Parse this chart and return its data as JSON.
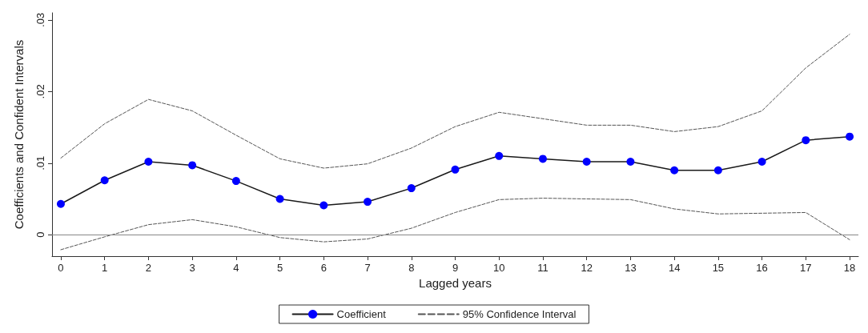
{
  "chart_data": {
    "type": "line",
    "xlabel": "Lagged years",
    "ylabel": "Coefficients and Confident Intervals",
    "x": [
      0,
      1,
      2,
      3,
      4,
      5,
      6,
      7,
      8,
      9,
      10,
      11,
      12,
      13,
      14,
      15,
      16,
      17,
      18
    ],
    "series": [
      {
        "name": "Coefficient",
        "color": "#0000ff",
        "marker": "circle",
        "line_style": "solid",
        "values": [
          0.0043,
          0.0076,
          0.0102,
          0.0097,
          0.0075,
          0.005,
          0.0041,
          0.0046,
          0.0065,
          0.0091,
          0.011,
          0.0106,
          0.0102,
          0.0102,
          0.009,
          0.009,
          0.0102,
          0.0132,
          0.0137
        ]
      },
      {
        "name": "95% Confidence Interval",
        "color": "#555555",
        "marker": "none",
        "line_style": "dashed",
        "values": [
          0.0107,
          0.0155,
          0.0189,
          0.0173,
          0.0139,
          0.0106,
          0.0093,
          0.0099,
          0.0121,
          0.0151,
          0.0171,
          0.0162,
          0.0153,
          0.0153,
          0.0144,
          0.0151,
          0.0173,
          0.0233,
          0.028
        ]
      },
      {
        "color": "#555555",
        "marker": "none",
        "line_style": "dashed",
        "values": [
          -0.0021,
          -0.0003,
          0.0014,
          0.0021,
          0.0011,
          -0.0004,
          -0.001,
          -0.0006,
          0.0009,
          0.0031,
          0.0049,
          0.0051,
          0.005,
          0.0049,
          0.0036,
          0.0029,
          0.003,
          0.0031,
          -0.0007
        ]
      }
    ],
    "xlim": [
      -0.2,
      18.2
    ],
    "xticks": [
      0,
      1,
      2,
      3,
      4,
      5,
      6,
      7,
      8,
      9,
      10,
      11,
      12,
      13,
      14,
      15,
      16,
      17,
      18
    ],
    "ylim": [
      -0.003,
      0.031
    ],
    "yticks": [
      0,
      {
        "value": 0.01,
        "label": ".01"
      },
      {
        "value": 0.02,
        "label": ".02"
      },
      {
        "value": 0.03,
        "label": ".03"
      }
    ],
    "ref_lines": [
      {
        "axis": "y",
        "value": 0,
        "color": "#888888"
      }
    ],
    "grid": false,
    "legend": "bottom"
  }
}
